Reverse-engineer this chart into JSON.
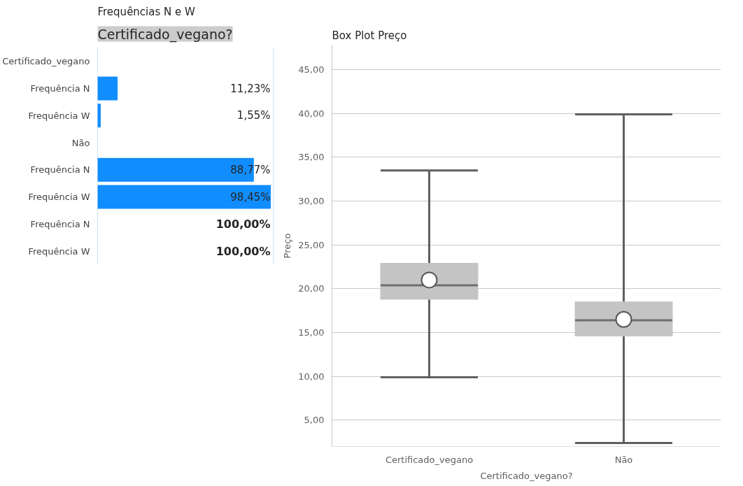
{
  "chart_data": [
    {
      "type": "bar",
      "orientation": "horizontal",
      "title": "Frequências N e W",
      "subtitle": "Certificado_vegano?",
      "categories": [
        "Certificado_vegano",
        "Frequência N",
        "Frequência W",
        "Não",
        "Frequência N",
        "Frequência W",
        "Frequência N",
        "Frequência W"
      ],
      "values": [
        null,
        11.23,
        1.55,
        null,
        88.77,
        98.45,
        null,
        null
      ],
      "value_labels": [
        null,
        "11,23%",
        "1,55%",
        null,
        "88,77%",
        "98,45%",
        "100,00%",
        "100,00%"
      ],
      "color": "#118dff",
      "xlim": [
        0,
        100
      ],
      "tick_labels": "y",
      "grid": false
    },
    {
      "type": "box",
      "title": "Box Plot Preço",
      "xlabel": "Certificado_vegano?",
      "ylabel": "Preço",
      "categories": [
        "Certificado_vegano",
        "Não"
      ],
      "series": [
        {
          "color": "#c4c4c4",
          "boxes": [
            {
              "low": 9.9,
              "q1": 18.8,
              "median": 20.4,
              "q3": 22.9,
              "high": 33.5,
              "mean": 21.0
            },
            {
              "low": 2.4,
              "q1": 14.6,
              "median": 16.4,
              "q3": 18.5,
              "high": 39.9,
              "mean": 16.5
            }
          ]
        }
      ],
      "ylim": [
        2,
        47.8
      ],
      "yticks": [
        {
          "value": 5,
          "label": "5,00"
        },
        {
          "value": 10,
          "label": "10,00"
        },
        {
          "value": 15,
          "label": "15,00"
        },
        {
          "value": 20,
          "label": "20,00"
        },
        {
          "value": 25,
          "label": "25,00"
        },
        {
          "value": 30,
          "label": "30,00"
        },
        {
          "value": 35,
          "label": "35,00"
        },
        {
          "value": 40,
          "label": "40,00"
        },
        {
          "value": 45,
          "label": "45,00"
        }
      ],
      "grid": "y",
      "marker": "circle"
    }
  ]
}
